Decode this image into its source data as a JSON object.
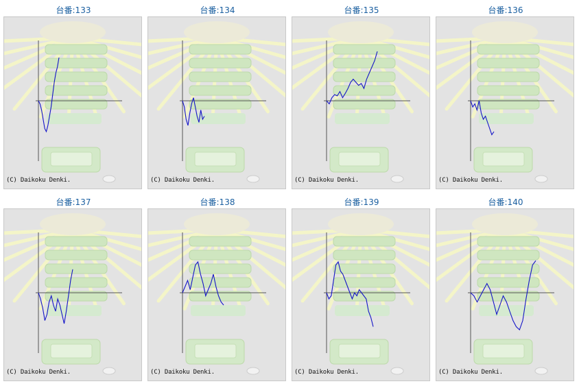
{
  "charts": [
    {
      "title": "台番:133"
    },
    {
      "title": "台番:134"
    },
    {
      "title": "台番:135"
    },
    {
      "title": "台番:136"
    },
    {
      "title": "台番:137"
    },
    {
      "title": "台番:138"
    },
    {
      "title": "台番:139"
    },
    {
      "title": "台番:140"
    }
  ],
  "copyright": "(C) Daikoku Denki.",
  "colors": {
    "line": "#1414c8",
    "axis": "#555555",
    "frame_bg": "#e3e3e3",
    "title": "#1a5fa0"
  },
  "chart_data": [
    {
      "type": "line",
      "title": "台番:133",
      "ylim": [
        -1,
        1
      ],
      "series": [
        {
          "values": [
            0,
            -0.05,
            -0.15,
            -0.3,
            -0.45,
            -0.5,
            -0.4,
            -0.25,
            -0.1,
            0.1,
            0.3,
            0.45,
            0.55,
            0.7
          ]
        }
      ]
    },
    {
      "type": "line",
      "title": "台番:134",
      "ylim": [
        -1,
        1
      ],
      "series": [
        {
          "values": [
            0,
            -0.1,
            -0.3,
            -0.4,
            -0.2,
            -0.05,
            0.05,
            -0.1,
            -0.25,
            -0.35,
            -0.15,
            -0.3,
            -0.25
          ]
        }
      ]
    },
    {
      "type": "line",
      "title": "台番:135",
      "ylim": [
        -1,
        1
      ],
      "series": [
        {
          "values": [
            0,
            -0.05,
            0.05,
            0.1,
            0.08,
            0.15,
            0.05,
            0.12,
            0.2,
            0.3,
            0.35,
            0.3,
            0.25,
            0.28,
            0.2,
            0.35,
            0.45,
            0.55,
            0.65,
            0.8
          ]
        }
      ]
    },
    {
      "type": "line",
      "title": "台番:136",
      "ylim": [
        -1,
        1
      ],
      "series": [
        {
          "values": [
            0,
            -0.1,
            -0.05,
            -0.15,
            0.0,
            -0.2,
            -0.3,
            -0.25,
            -0.35,
            -0.45,
            -0.55,
            -0.5
          ]
        }
      ]
    },
    {
      "type": "line",
      "title": "台番:137",
      "ylim": [
        -1,
        1
      ],
      "series": [
        {
          "values": [
            0,
            -0.1,
            -0.25,
            -0.45,
            -0.35,
            -0.15,
            -0.05,
            -0.2,
            -0.3,
            -0.1,
            -0.2,
            -0.35,
            -0.5,
            -0.3,
            -0.05,
            0.2,
            0.38
          ]
        }
      ]
    },
    {
      "type": "line",
      "title": "台番:138",
      "ylim": [
        -1,
        1
      ],
      "series": [
        {
          "values": [
            0,
            0.1,
            0.2,
            0.05,
            0.25,
            0.45,
            0.5,
            0.3,
            0.15,
            -0.05,
            0.05,
            0.15,
            0.3,
            0.1,
            -0.05,
            -0.15,
            -0.2
          ]
        }
      ]
    },
    {
      "type": "line",
      "title": "台番:139",
      "ylim": [
        -1,
        1
      ],
      "series": [
        {
          "values": [
            0,
            -0.1,
            -0.05,
            0.2,
            0.45,
            0.5,
            0.35,
            0.3,
            0.2,
            0.1,
            0.0,
            -0.1,
            0.0,
            -0.05,
            0.05,
            0.0,
            -0.05,
            -0.1,
            -0.3,
            -0.4,
            -0.55
          ]
        }
      ]
    },
    {
      "type": "line",
      "title": "台番:140",
      "ylim": [
        -1,
        1
      ],
      "series": [
        {
          "values": [
            0,
            -0.05,
            -0.15,
            -0.05,
            0.05,
            0.15,
            0.05,
            -0.15,
            -0.35,
            -0.2,
            -0.05,
            -0.15,
            -0.3,
            -0.45,
            -0.55,
            -0.6,
            -0.45,
            -0.1,
            0.2,
            0.45,
            0.52
          ]
        }
      ]
    }
  ]
}
